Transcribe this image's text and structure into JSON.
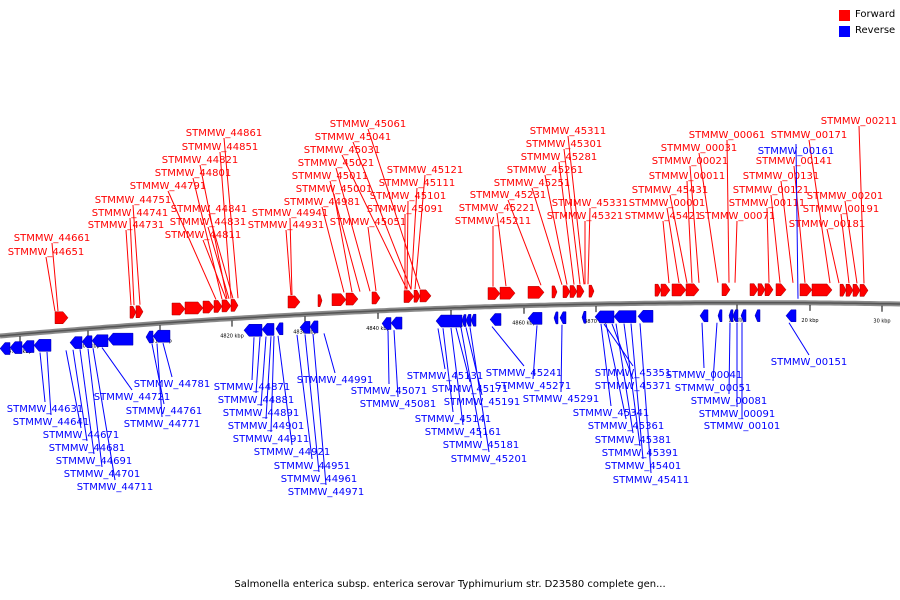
{
  "legend": {
    "forward_label": "Forward",
    "reverse_label": "Reverse",
    "forward_color": "#ff0000",
    "reverse_color": "#0000ff"
  },
  "caption": "Salmonella enterica subsp. enterica serovar Typhimurium str. D23580 complete gen...",
  "axis_ticks": [
    "4790 kbp",
    "4800 kbp",
    "4810 kbp",
    "4820 kbp",
    "4830 kbp",
    "4840 kbp",
    "4850 kbp",
    "4860 kbp",
    "4870 kbp",
    "10 kbp",
    "20 kbp",
    "30 kbp"
  ],
  "forward_labels": [
    "STMMW_44661",
    "STMMW_44651",
    "STMMW_44861",
    "STMMW_44851",
    "STMMW_44821",
    "STMMW_44801",
    "STMMW_44791",
    "STMMW_44751",
    "STMMW_44741",
    "STMMW_44731",
    "STMMW_44841",
    "STMMW_44831",
    "STMMW_44811",
    "STMMW_45061",
    "STMMW_45041",
    "STMMW_45031",
    "STMMW_45021",
    "STMMW_45011",
    "STMMW_45001",
    "STMMW_44981",
    "STMMW_44941",
    "STMMW_44931",
    "STMMW_45121",
    "STMMW_45111",
    "STMMW_45101",
    "STMMW_45091",
    "STMMW_45051",
    "STMMW_45311",
    "STMMW_45301",
    "STMMW_45281",
    "STMMW_45261",
    "STMMW_45251",
    "STMMW_45231",
    "STMMW_45221",
    "STMMW_45211",
    "STMMW_45331",
    "STMMW_45321",
    "STMMW_00061",
    "STMMW_00031",
    "STMMW_00021",
    "STMMW_00011",
    "STMMW_45431",
    "STMMW_00001",
    "STMMW_45421",
    "STMMW_00171",
    "STMMW_00141",
    "STMMW_00131",
    "STMMW_00121",
    "STMMW_00111",
    "STMMW_00071",
    "STMMW_00211",
    "STMMW_00201",
    "STMMW_00191",
    "STMMW_00181"
  ],
  "reverse_labels": [
    "STMMW_44631",
    "STMMW_44641",
    "STMMW_44671",
    "STMMW_44681",
    "STMMW_44691",
    "STMMW_44701",
    "STMMW_44711",
    "STMMW_44721",
    "STMMW_44761",
    "STMMW_44771",
    "STMMW_44781",
    "STMMW_44871",
    "STMMW_44881",
    "STMMW_44891",
    "STMMW_44901",
    "STMMW_44911",
    "STMMW_44921",
    "STMMW_44951",
    "STMMW_44961",
    "STMMW_44971",
    "STMMW_44991",
    "STMMW_45071",
    "STMMW_45081",
    "STMMW_45131",
    "STMMW_45171",
    "STMMW_45191",
    "STMMW_45141",
    "STMMW_45161",
    "STMMW_45181",
    "STMMW_45201",
    "STMMW_45241",
    "STMMW_45271",
    "STMMW_45291",
    "STMMW_45351",
    "STMMW_45371",
    "STMMW_45341",
    "STMMW_45361",
    "STMMW_45381",
    "STMMW_45391",
    "STMMW_45401",
    "STMMW_45411",
    "STMMW_00161",
    "STMMW_00151",
    "STMMW_00041",
    "STMMW_00051",
    "STMMW_00081",
    "STMMW_00091",
    "STMMW_00101"
  ]
}
